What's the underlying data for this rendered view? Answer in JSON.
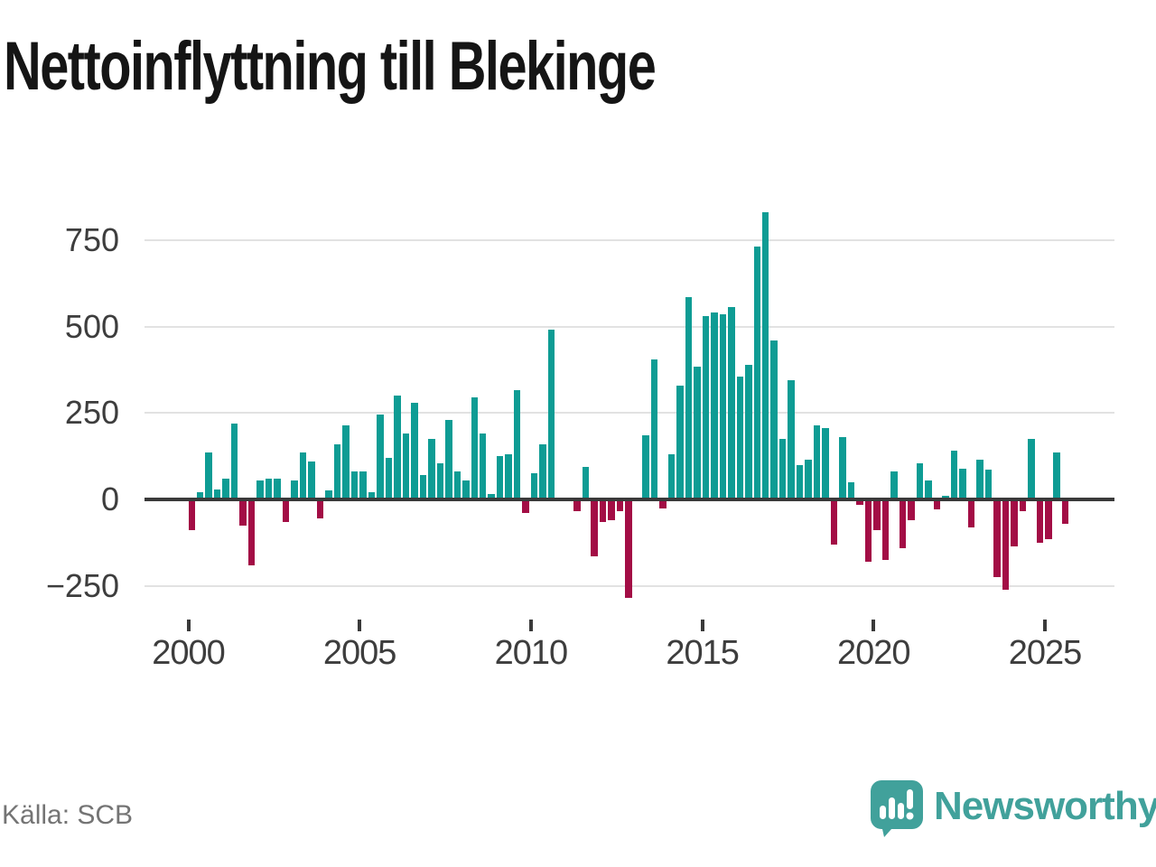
{
  "title": "Nettoinflyttning till Blekinge",
  "source": "Källa: SCB",
  "branding": {
    "logo_text": "Newsworthy",
    "logo_color": "#41A19B"
  },
  "chart_data": {
    "type": "bar",
    "title": "Nettoinflyttning till Blekinge",
    "xlabel": "",
    "ylabel": "",
    "grid": true,
    "legend": false,
    "frequency": "quarterly",
    "x_tick_labels": [
      "2000",
      "2005",
      "2010",
      "2015",
      "2020",
      "2025"
    ],
    "y_ticks": [
      750,
      500,
      250,
      0,
      -250
    ],
    "y_tick_labels": [
      "750",
      "500",
      "250",
      "0",
      "−250"
    ],
    "ylim": [
      -300,
      870
    ],
    "colors": {
      "positive": "#0E9C94",
      "negative": "#A30D45"
    },
    "categories": [
      "2000 Q1",
      "2000 Q2",
      "2000 Q3",
      "2000 Q4",
      "2001 Q1",
      "2001 Q2",
      "2001 Q3",
      "2001 Q4",
      "2002 Q1",
      "2002 Q2",
      "2002 Q3",
      "2002 Q4",
      "2003 Q1",
      "2003 Q2",
      "2003 Q3",
      "2003 Q4",
      "2004 Q1",
      "2004 Q2",
      "2004 Q3",
      "2004 Q4",
      "2005 Q1",
      "2005 Q2",
      "2005 Q3",
      "2005 Q4",
      "2006 Q1",
      "2006 Q2",
      "2006 Q3",
      "2006 Q4",
      "2007 Q1",
      "2007 Q2",
      "2007 Q3",
      "2007 Q4",
      "2008 Q1",
      "2008 Q2",
      "2008 Q3",
      "2008 Q4",
      "2009 Q1",
      "2009 Q2",
      "2009 Q3",
      "2009 Q4",
      "2010 Q1",
      "2010 Q2",
      "2010 Q3",
      "2010 Q4",
      "2011 Q1",
      "2011 Q2",
      "2011 Q3",
      "2011 Q4",
      "2012 Q1",
      "2012 Q2",
      "2012 Q3",
      "2012 Q4",
      "2013 Q1",
      "2013 Q2",
      "2013 Q3",
      "2013 Q4",
      "2014 Q1",
      "2014 Q2",
      "2014 Q3",
      "2014 Q4",
      "2015 Q1",
      "2015 Q2",
      "2015 Q3",
      "2015 Q4",
      "2016 Q1",
      "2016 Q2",
      "2016 Q3",
      "2016 Q4",
      "2017 Q1",
      "2017 Q2",
      "2017 Q3",
      "2017 Q4",
      "2018 Q1",
      "2018 Q2",
      "2018 Q3",
      "2018 Q4",
      "2019 Q1",
      "2019 Q2",
      "2019 Q3",
      "2019 Q4",
      "2020 Q1",
      "2020 Q2",
      "2020 Q3",
      "2020 Q4",
      "2021 Q1",
      "2021 Q2",
      "2021 Q3",
      "2021 Q4",
      "2022 Q1",
      "2022 Q2",
      "2022 Q3",
      "2022 Q4",
      "2023 Q1",
      "2023 Q2",
      "2023 Q3",
      "2023 Q4",
      "2024 Q1",
      "2024 Q2",
      "2024 Q3",
      "2024 Q4",
      "2025 Q1",
      "2025 Q2",
      "2025 Q3"
    ],
    "values": [
      -90,
      20,
      135,
      30,
      60,
      220,
      -75,
      -190,
      55,
      60,
      60,
      -65,
      55,
      135,
      110,
      -55,
      25,
      160,
      215,
      80,
      80,
      20,
      245,
      120,
      300,
      190,
      280,
      70,
      175,
      105,
      230,
      80,
      55,
      295,
      190,
      15,
      125,
      130,
      315,
      -40,
      75,
      160,
      490,
      0,
      0,
      -35,
      95,
      -165,
      -65,
      -60,
      -35,
      -285,
      0,
      185,
      405,
      -25,
      130,
      330,
      585,
      385,
      530,
      540,
      535,
      555,
      355,
      390,
      730,
      830,
      460,
      175,
      345,
      100,
      115,
      215,
      205,
      -130,
      180,
      50,
      -15,
      -180,
      -90,
      -175,
      80,
      -140,
      -60,
      105,
      55,
      -30,
      10,
      140,
      90,
      -80,
      115,
      85,
      -225,
      -260,
      -135,
      -35,
      175,
      -125,
      -115,
      135,
      -70
    ]
  }
}
